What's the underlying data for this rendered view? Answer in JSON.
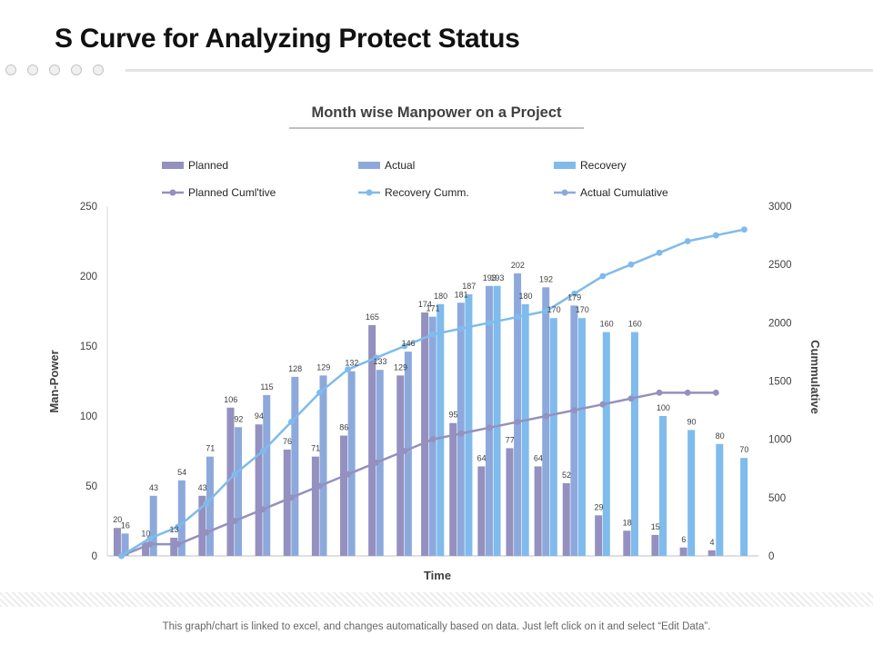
{
  "page": {
    "title": "S Curve for Analyzing Protect Status",
    "footer": "This graph/chart is linked to excel, and changes automatically based on data. Just left click on it and select “Edit Data”."
  },
  "colors": {
    "planned": "#9490bf",
    "actual": "#8da9dc",
    "recovery": "#7fbbec",
    "planned_cum": "#9490bf",
    "recovery_cum": "#7fbbec",
    "actual_cum": "#8da9dc"
  },
  "chart_data": {
    "type": "bar",
    "title": "Month wise Manpower on a Project",
    "xlabel": "Time",
    "ylabel": "Man-Power",
    "y2label": "Cummulative",
    "ylim": [
      0,
      250
    ],
    "y2lim": [
      0,
      3000
    ],
    "yticks": [
      0,
      50,
      100,
      150,
      200,
      250
    ],
    "y2ticks": [
      0,
      500,
      1000,
      1500,
      2000,
      2500,
      3000
    ],
    "grid": false,
    "legend": "top",
    "bar_series": [
      {
        "name": "Planned",
        "values": [
          20,
          10,
          13,
          43,
          106,
          94,
          76,
          71,
          86,
          165,
          129,
          174,
          95,
          64,
          77,
          64,
          52,
          29,
          18,
          15,
          6,
          4,
          null
        ]
      },
      {
        "name": "Actual",
        "values": [
          16,
          43,
          54,
          71,
          92,
          115,
          128,
          129,
          132,
          133,
          146,
          171,
          181,
          193,
          202,
          192,
          179,
          null,
          null,
          null,
          null,
          null,
          null
        ]
      },
      {
        "name": "Recovery",
        "values": [
          null,
          null,
          null,
          null,
          null,
          null,
          null,
          null,
          null,
          null,
          null,
          180,
          187,
          193,
          180,
          170,
          170,
          160,
          160,
          100,
          90,
          80,
          70
        ]
      }
    ],
    "line_series": [
      {
        "name": "Planned Cuml'tive",
        "values": [
          0,
          100,
          100,
          200,
          300,
          400,
          500,
          600,
          700,
          800,
          900,
          1000,
          1050,
          1100,
          1150,
          1200,
          1250,
          1300,
          1350,
          1400,
          1400,
          1400,
          null
        ]
      },
      {
        "name": "Recovery Cumm.",
        "values": [
          0,
          150,
          250,
          450,
          700,
          900,
          1150,
          1400,
          1600,
          1700,
          1800,
          1900,
          1950,
          2000,
          2050,
          2100,
          2250,
          2400,
          2500,
          2600,
          2700,
          2750,
          2800
        ]
      },
      {
        "name": "Actual Cumulative",
        "values": [
          null,
          null,
          null,
          null,
          null,
          null,
          null,
          null,
          null,
          null,
          null,
          null,
          null,
          null,
          null,
          null,
          null,
          null,
          null,
          null,
          null,
          null,
          null
        ]
      }
    ]
  }
}
